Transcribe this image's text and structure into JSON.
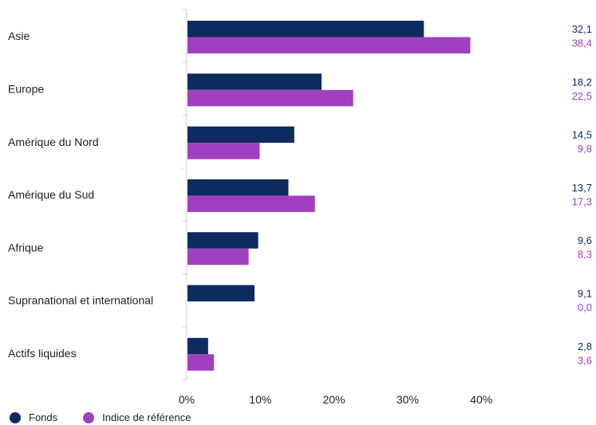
{
  "colors": {
    "fonds": "#0d2b5e",
    "indice": "#a040c0",
    "axis": "#d0d0d0",
    "text": "#1f1f1f"
  },
  "chart_data": {
    "type": "bar",
    "orientation": "horizontal",
    "categories": [
      "Asie",
      "Europe",
      "Amérique du Nord",
      "Amérique du Sud",
      "Afrique",
      "Supranational et international",
      "Actifs liquides"
    ],
    "series": [
      {
        "name": "Fonds",
        "values": [
          32.1,
          18.2,
          14.5,
          13.7,
          9.6,
          9.1,
          2.8
        ]
      },
      {
        "name": "Indice de référence",
        "values": [
          38.4,
          22.5,
          9.8,
          17.3,
          8.3,
          0.0,
          3.6
        ]
      }
    ],
    "value_labels": [
      [
        "32,1",
        "38,4"
      ],
      [
        "18,2",
        "22,5"
      ],
      [
        "14,5",
        "9,8"
      ],
      [
        "13,7",
        "17,3"
      ],
      [
        "9,6",
        "8,3"
      ],
      [
        "9,1",
        "0,0"
      ],
      [
        "2,8",
        "3,6"
      ]
    ],
    "xticks": [
      0,
      10,
      20,
      30,
      40
    ],
    "xtick_labels": [
      "0%",
      "10%",
      "20%",
      "30%",
      "40%"
    ],
    "xlim": [
      0,
      50
    ],
    "grid": false,
    "legend_position": "bottom-left"
  },
  "legend": {
    "fonds": "Fonds",
    "indice": "Indice de référence"
  }
}
